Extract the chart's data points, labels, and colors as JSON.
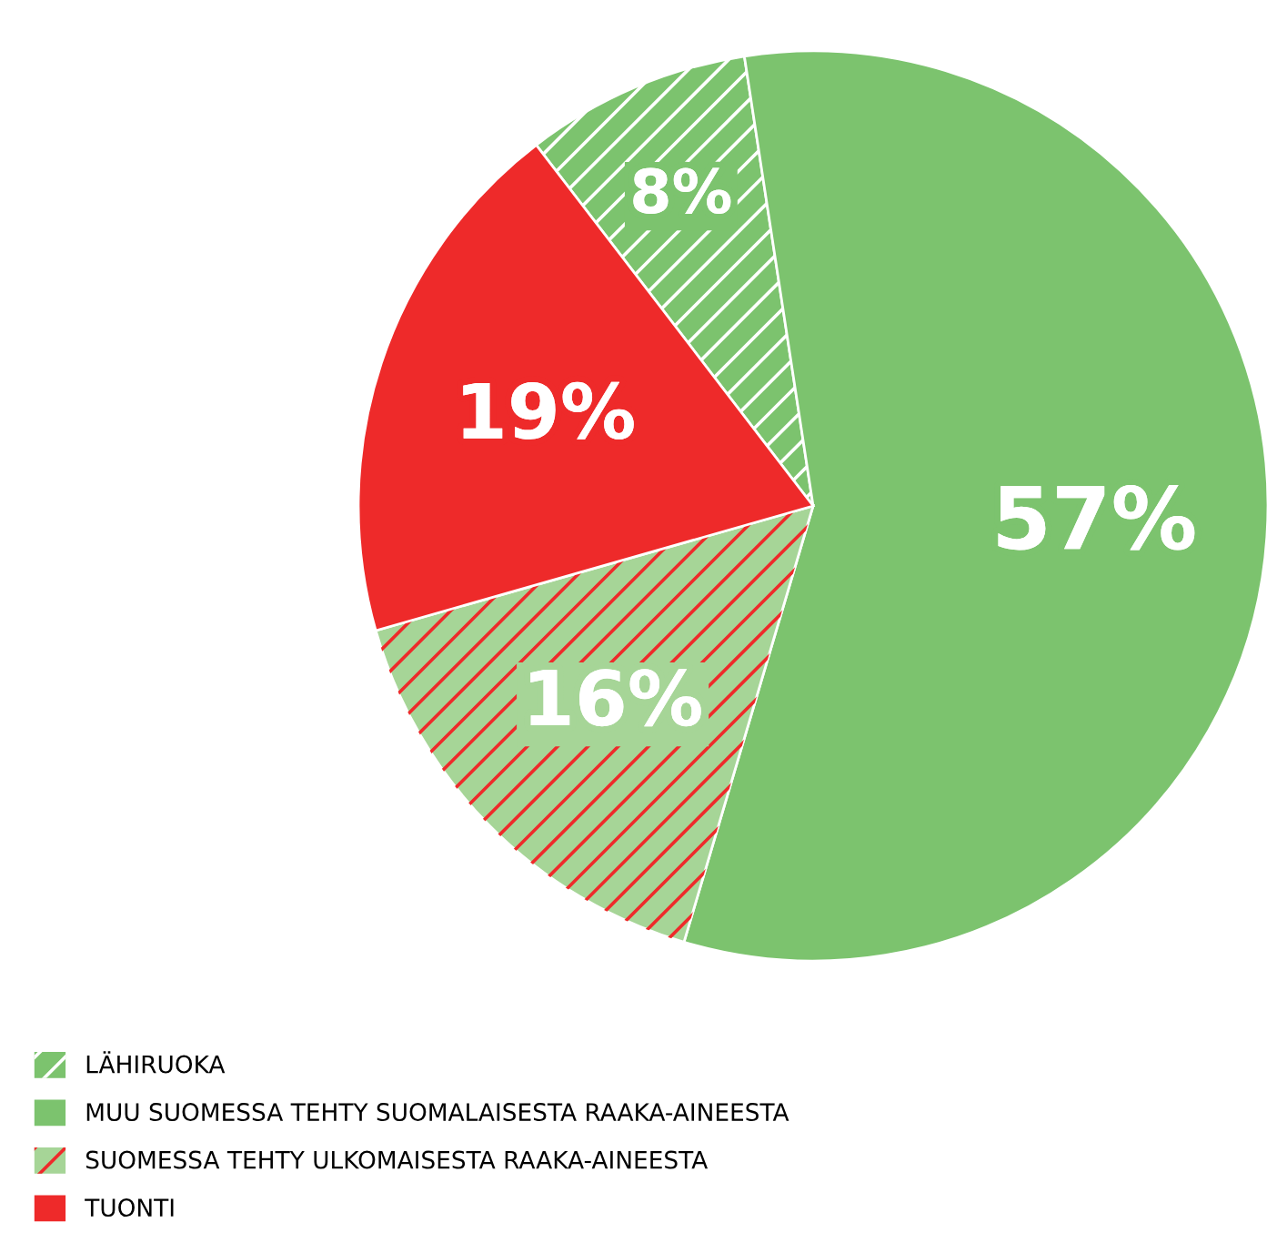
{
  "chart_data": {
    "type": "pie",
    "categories": [
      "LÄHIRUOKA",
      "MUU SUOMESSA TEHTY SUOMALAISESTA RAAKA-AINEESTA",
      "SUOMESSA TEHTY ULKOMAISESTA RAAKA-AINEESTA",
      "TUONTI"
    ],
    "values": [
      8,
      57,
      16,
      19
    ],
    "value_labels": [
      "8%",
      "57%",
      "16%",
      "19%"
    ],
    "colors": [
      "#7cc36e",
      "#7cc36e",
      "#a6d597",
      "#ee2a2a"
    ],
    "legend": "bottom left"
  }
}
